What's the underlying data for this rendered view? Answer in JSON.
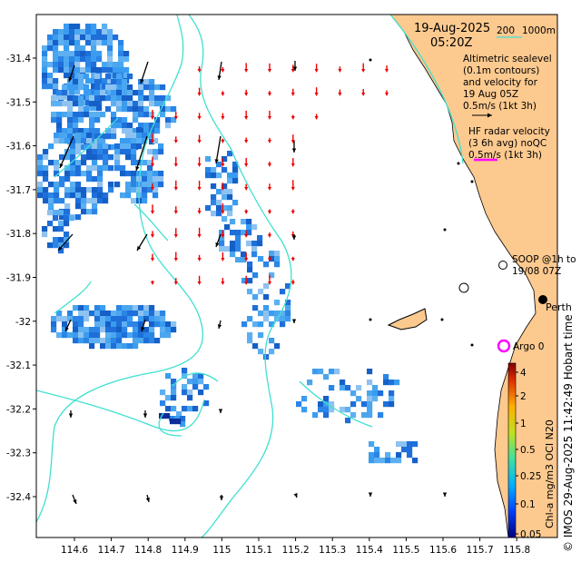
{
  "header": {
    "date": "19-Aug-2025",
    "time": "05:20Z",
    "isobath_label_200": "200",
    "isobath_label_1000": "1000m"
  },
  "legend": {
    "altimetry_line1": "Altimetric sealevel",
    "altimetry_line2": "(0.1m contours)",
    "altimetry_line3": "and velocity for",
    "altimetry_line4": "19 Aug 05Z",
    "altimetry_scale": "0.5m/s (1kt 3h)",
    "hf_line1": "HF radar velocity",
    "hf_line2": "(3 6h avg) noQC",
    "hf_scale": "0.5m/s (1kt 3h)",
    "soop_line1": "SOOP @1h to",
    "soop_line2": "19/08 07Z",
    "argo_label": "Argo 0",
    "city_label": "Perth"
  },
  "axes": {
    "x_ticks": [
      "114.6",
      "114.7",
      "114.8",
      "114.9",
      "115",
      "115.1",
      "115.2",
      "115.3",
      "115.4",
      "115.5",
      "115.6",
      "115.7",
      "115.8"
    ],
    "y_ticks": [
      "-31.4",
      "-31.5",
      "-31.6",
      "-31.7",
      "-31.8",
      "-31.9",
      "-32",
      "-32.1",
      "-32.2",
      "-32.3",
      "-32.4"
    ]
  },
  "colorbar": {
    "label": "Chl-a mg/m3 OCI N20",
    "ticks": [
      "4",
      "2",
      "1",
      "0.5",
      "0.25",
      "0.1",
      "0.05"
    ]
  },
  "credit": "© IMOS 29-Aug-2025 11:42:49 Hobart time",
  "colors": {
    "land": "#fcc98f",
    "isobath": "#40e0d0",
    "hf_arrow": "#ee0000",
    "alt_arrow": "#000000",
    "argo_ring": "#ff00ff",
    "chl_high": "#1e6fd9",
    "chl_low": "#8ec2f0"
  }
}
